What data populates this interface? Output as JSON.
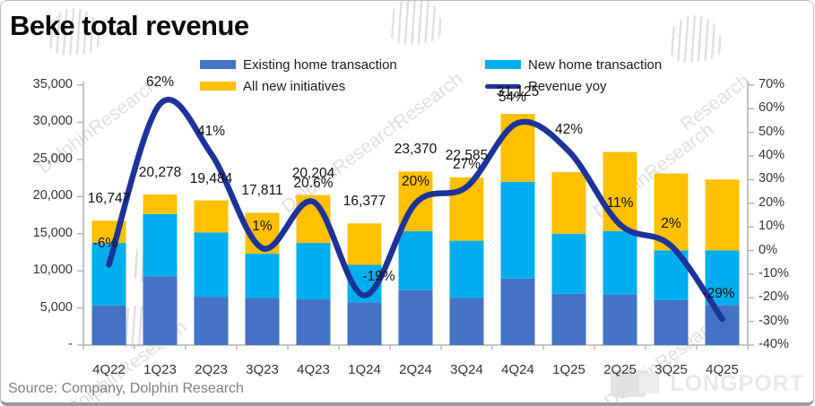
{
  "title": "Beke total revenue",
  "source": "Source: Company, Dolphin Research",
  "watermarks": {
    "brand": "DolphinResearch",
    "brand_short": "Research",
    "footer_brand": "LONGPORT"
  },
  "colors": {
    "existing_bar": "#4472C4",
    "new_home_bar": "#00AEEF",
    "initiatives_bar": "#FFC000",
    "yoy_line": "#1E3399",
    "axis": "#b3b3b3",
    "watermark": "#d9d9d9"
  },
  "legend": {
    "items": [
      {
        "label": "Existing home transaction",
        "swatch": "bar",
        "color": "#4472C4"
      },
      {
        "label": "New home transaction",
        "swatch": "bar",
        "color": "#00AEEF"
      },
      {
        "label": "All new initiatives",
        "swatch": "bar",
        "color": "#FFC000"
      },
      {
        "label": "Revenue yoy",
        "swatch": "line",
        "color": "#1E3399"
      }
    ]
  },
  "chart_data": {
    "type": "bar",
    "subtype": "stacked-bars-with-line-overlay",
    "title": "Beke total revenue",
    "grid": false,
    "legend_position": "top",
    "categories": [
      "4Q22",
      "1Q23",
      "2Q23",
      "3Q23",
      "4Q23",
      "1Q24",
      "2Q24",
      "3Q24",
      "4Q24",
      "1Q25",
      "2Q25",
      "3Q25",
      "4Q25"
    ],
    "left_axis": {
      "min": 0,
      "max": 35000,
      "tick_step": 5000,
      "tick_labels": [
        "35,000",
        "30,000",
        "25,000",
        "20,000",
        "15,000",
        "10,000",
        "5,000",
        "-"
      ]
    },
    "right_axis": {
      "min": -40,
      "max": 70,
      "tick_step": 10,
      "unit": "%",
      "tick_labels": [
        "70%",
        "60%",
        "50%",
        "40%",
        "30%",
        "20%",
        "10%",
        "0%",
        "-10%",
        "-20%",
        "-30%",
        "-40%"
      ]
    },
    "series": [
      {
        "name": "Existing home transaction",
        "type": "bar",
        "stack": "revenue",
        "color": "#4472C4",
        "values": [
          5350,
          9250,
          6500,
          6350,
          6150,
          5750,
          7400,
          6350,
          8950,
          6900,
          6800,
          6050,
          5400
        ]
      },
      {
        "name": "New home transaction",
        "type": "bar",
        "stack": "revenue",
        "color": "#00AEEF",
        "values": [
          8400,
          8400,
          8650,
          5950,
          7600,
          5050,
          7950,
          7700,
          13050,
          8100,
          8550,
          6700,
          7350
        ]
      },
      {
        "name": "All new initiatives",
        "type": "bar",
        "stack": "revenue",
        "color": "#FFC000",
        "values": [
          2997,
          2628,
          4334,
          5511,
          6454,
          5577,
          8020,
          8535,
          9125,
          8280,
          10650,
          10350,
          9550
        ]
      },
      {
        "name": "Revenue yoy",
        "type": "line",
        "axis": "right",
        "color": "#1E3399",
        "smooth": true,
        "values": [
          -6,
          62,
          41,
          1,
          20.6,
          -19,
          20,
          27,
          54,
          42,
          11,
          2,
          -29
        ],
        "point_labels": [
          "-6%",
          "62%",
          "41%",
          "1%",
          "20.6%",
          "-19%",
          "20%",
          "27%",
          "54%",
          "42%",
          "11%",
          "2%",
          "-29%"
        ]
      }
    ],
    "bar_total_labels": [
      "16,747",
      "20,278",
      "19,484",
      "17,811",
      "20,204",
      "16,377",
      "23,370",
      "22,585",
      "31,125",
      null,
      null,
      null,
      null
    ]
  }
}
